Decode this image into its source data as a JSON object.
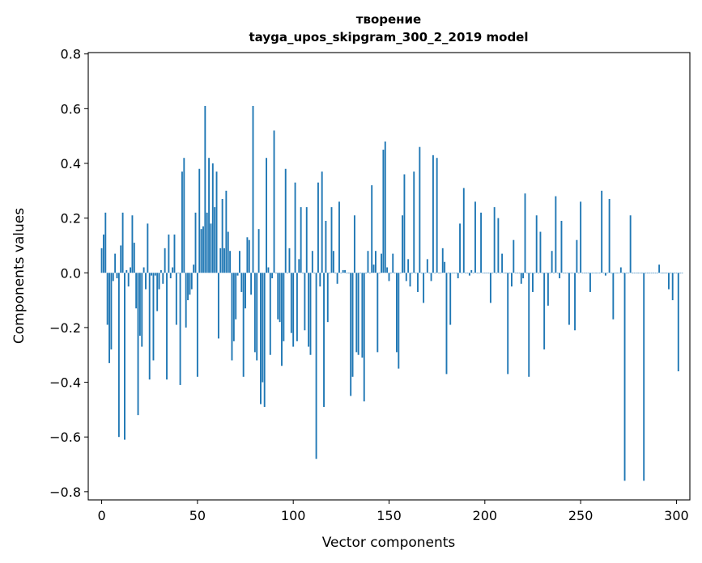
{
  "chart_data": {
    "type": "bar",
    "title": "творение",
    "subtitle": "tayga_upos_skipgram_300_2_2019 model",
    "xlabel": "Vector components",
    "ylabel": "Components values",
    "xlim": [
      -7,
      307
    ],
    "ylim": [
      -0.83,
      0.805
    ],
    "xticks": [
      0,
      50,
      100,
      150,
      200,
      250,
      300
    ],
    "yticks": [
      -0.8,
      -0.6,
      -0.4,
      -0.2,
      0.0,
      0.2,
      0.4,
      0.6,
      0.8
    ],
    "ytick_labels": [
      "−0.8",
      "−0.6",
      "−0.4",
      "−0.2",
      "0.0",
      "0.2",
      "0.4",
      "0.6",
      "0.8"
    ],
    "bar_color": "#1f77b4",
    "values": [
      0.09,
      0.14,
      0.22,
      -0.19,
      -0.33,
      -0.28,
      -0.03,
      0.07,
      -0.02,
      -0.6,
      0.1,
      0.22,
      -0.61,
      0.01,
      -0.05,
      0.02,
      0.21,
      0.11,
      -0.13,
      -0.52,
      -0.23,
      -0.27,
      0.02,
      -0.06,
      0.18,
      -0.39,
      -0.01,
      -0.32,
      -0.01,
      -0.14,
      -0.06,
      0.01,
      -0.04,
      0.09,
      -0.39,
      0.14,
      -0.02,
      0.02,
      0.14,
      -0.19,
      0.0,
      -0.41,
      0.37,
      0.42,
      -0.2,
      -0.1,
      -0.08,
      -0.06,
      0.03,
      0.22,
      -0.38,
      0.38,
      0.16,
      0.17,
      0.61,
      0.22,
      0.42,
      0.18,
      0.4,
      0.24,
      0.37,
      -0.24,
      0.09,
      0.27,
      0.09,
      0.3,
      0.15,
      0.08,
      -0.32,
      -0.25,
      -0.17,
      -0.01,
      0.08,
      -0.07,
      -0.38,
      -0.13,
      0.13,
      0.12,
      -0.08,
      0.61,
      -0.29,
      -0.32,
      0.16,
      -0.48,
      -0.4,
      -0.49,
      0.42,
      0.02,
      -0.3,
      -0.02,
      0.52,
      0.0,
      -0.17,
      -0.18,
      -0.34,
      -0.25,
      0.38,
      0.0,
      0.09,
      -0.22,
      -0.27,
      0.33,
      -0.25,
      0.05,
      0.24,
      0.0,
      -0.21,
      0.24,
      -0.27,
      -0.3,
      0.08,
      0.0,
      -0.68,
      0.33,
      -0.05,
      0.37,
      -0.49,
      0.19,
      -0.18,
      0.0,
      0.24,
      0.08,
      0.0,
      -0.04,
      0.26,
      0.0,
      0.01,
      0.01,
      0.0,
      0.0,
      -0.45,
      -0.38,
      0.21,
      -0.29,
      -0.3,
      0.0,
      -0.31,
      -0.47,
      0.0,
      0.08,
      0.0,
      0.32,
      0.03,
      0.08,
      -0.29,
      0.0,
      0.07,
      0.45,
      0.48,
      0.02,
      -0.03,
      0.0,
      0.07,
      0.0,
      -0.29,
      -0.35,
      0.0,
      0.21,
      0.36,
      -0.03,
      0.05,
      -0.05,
      0.0,
      0.37,
      0.0,
      -0.07,
      0.46,
      0.0,
      -0.11,
      0.0,
      0.05,
      0.0,
      -0.03,
      0.43,
      0.0,
      0.42,
      0.0,
      0.0,
      0.09,
      0.04,
      -0.37,
      0.0,
      -0.19,
      0.0,
      0.0,
      0.0,
      -0.02,
      0.18,
      0.0,
      0.31,
      0.0,
      0.0,
      -0.01,
      0.01,
      0.0,
      0.26,
      0.0,
      0.0,
      0.22,
      0.0,
      0.0,
      0.0,
      0.0,
      -0.11,
      0.0,
      0.24,
      0.0,
      0.2,
      0.0,
      0.07,
      0.0,
      0.0,
      -0.37,
      0.0,
      -0.05,
      0.12,
      0.0,
      0.0,
      0.0,
      -0.04,
      -0.02,
      0.29,
      0.0,
      -0.38,
      0.0,
      -0.07,
      0.0,
      0.21,
      0.0,
      0.15,
      0.0,
      -0.28,
      0.0,
      -0.12,
      0.0,
      0.08,
      0.0,
      0.28,
      0.0,
      -0.02,
      0.19,
      0.0,
      0.0,
      0.0,
      -0.19,
      0.0,
      0.0,
      -0.21,
      0.12,
      0.0,
      0.26,
      0.0,
      0.0,
      0.0,
      0.0,
      -0.07,
      0.0,
      0.0,
      0.0,
      0.0,
      0.0,
      0.3,
      0.0,
      -0.01,
      0.0,
      0.27,
      0.0,
      -0.17,
      0.0,
      0.0,
      0.0,
      0.02,
      0.0,
      -0.76,
      0.0,
      0.0,
      0.21,
      0.0,
      0.0,
      0.0,
      0.0,
      0.0,
      0.0,
      -0.76,
      0.0,
      0.0,
      0.0,
      0.0,
      0.0,
      0.0,
      0.0,
      0.03,
      0.0,
      0.0,
      0.0,
      0.0,
      -0.06,
      0.0,
      -0.1,
      0.0,
      0.0,
      -0.36,
      0.0,
      0.0
    ]
  }
}
